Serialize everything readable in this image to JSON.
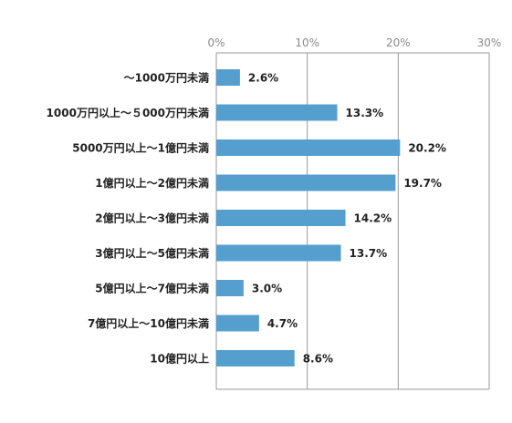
{
  "chart_data": {
    "type": "bar",
    "orientation": "horizontal",
    "categories": [
      "～1000万円未満",
      "1000万円以上～５000万円未満",
      "5000万円以上～1億円未満",
      "1億円以上～2億円未満",
      "2億円以上～3億円未満",
      "3億円以上～5億円未満",
      "5億円以上～7億円未満",
      "7億円以上～10億円未満",
      "10億円以上"
    ],
    "values": [
      2.6,
      13.3,
      20.2,
      19.7,
      14.2,
      13.7,
      3.0,
      4.7,
      8.6
    ],
    "value_labels": [
      "2.6%",
      "13.3%",
      "20.2%",
      "19.7%",
      "14.2%",
      "13.7%",
      "3.0%",
      "4.7%",
      "8.6%"
    ],
    "xlim": [
      0,
      30
    ],
    "x_ticks": [
      0,
      10,
      20,
      30
    ],
    "x_tick_labels": [
      "0%",
      "10%",
      "20%",
      "30%"
    ],
    "x_axis_position": "top",
    "grid": true,
    "legend": "none",
    "bar_color": "#559fcf",
    "grid_color": "#999999"
  }
}
